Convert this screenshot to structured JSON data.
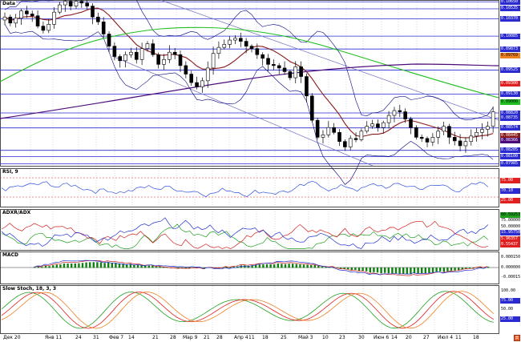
{
  "colors": {
    "background": "#ffffff",
    "grid_dot": "#b0b0c8",
    "hline": "#2a2ad0",
    "candle_up": "#ffffff",
    "candle_down": "#000000",
    "ma_short": "#8b1a1a",
    "ma_mid": "#20c020",
    "ma_long": "#4b0a7a",
    "bollinger": "#000080",
    "channel": "#7070c0",
    "rsi": "#3050e0",
    "adx_green": "#20a020",
    "adx_red": "#d02020",
    "adx_blue": "#2030d0",
    "macd_hist": "#108010",
    "macd_sig": "#d02020",
    "macd_line": "#2030d0",
    "stoch_green": "#20a020",
    "stoch_red": "#e02020",
    "stoch_orange": "#f08020"
  },
  "panes": {
    "price": {
      "label": "Data"
    },
    "rsi": {
      "label": "RSI, 9"
    },
    "adx": {
      "label": "ADXR/ADX"
    },
    "macd": {
      "label": "MACD"
    },
    "stoch": {
      "label": "Slow Stoch, 18, 3, 3"
    }
  },
  "price_tags": [
    {
      "text": "0.10650",
      "bg": "#2a2ad0",
      "fg": "#ffffff"
    },
    {
      "text": "0.10535",
      "bg": "#2a2ad0",
      "fg": "#ffffff"
    },
    {
      "text": "0.10370",
      "bg": "#2a2ad0",
      "fg": "#ffffff"
    },
    {
      "text": "0.10085",
      "bg": "#2a2ad0",
      "fg": "#ffffff"
    },
    {
      "text": "0.09873",
      "bg": "#2a2ad0",
      "fg": "#ffffff"
    },
    {
      "text": "0.09769",
      "bg": "#f08020",
      "fg": "#000000"
    },
    {
      "text": "0.09525",
      "bg": "#2a2ad0",
      "fg": "#ffffff"
    },
    {
      "text": "0.09300",
      "bg": "#e02020",
      "fg": "#ffffff"
    },
    {
      "text": "0.09130",
      "bg": "#2a2ad0",
      "fg": "#ffffff"
    },
    {
      "text": "0.09000",
      "bg": "#20c020",
      "fg": "#000000"
    },
    {
      "text": "0.08820",
      "bg": "#2a2ad0",
      "fg": "#ffffff"
    },
    {
      "text": "0.08735",
      "bg": "#2a2ad0",
      "fg": "#ffffff"
    },
    {
      "text": "0.08574",
      "bg": "#2a2ad0",
      "fg": "#ffffff"
    },
    {
      "text": "0.08445",
      "bg": "#8b1a1a",
      "fg": "#ffffff"
    },
    {
      "text": "0.08366",
      "bg": "#4b0a7a",
      "fg": "#ffffff"
    },
    {
      "text": "0.08205",
      "bg": "#2a2ad0",
      "fg": "#ffffff"
    },
    {
      "text": "0.08100",
      "bg": "#2a2ad0",
      "fg": "#ffffff"
    },
    {
      "text": "0.07985",
      "bg": "#2a2ad0",
      "fg": "#ffffff"
    }
  ],
  "indicator_tags": {
    "rsi": [
      {
        "text": "75.00",
        "bg": "#e02020",
        "fg": "#ffffff"
      },
      {
        "text": "70.10",
        "bg": "#2a2ad0",
        "fg": "#ffffff"
      },
      {
        "text": "25.00",
        "bg": "#e02020",
        "fg": "#ffffff"
      }
    ],
    "adx": [
      {
        "text": "60.59253",
        "bg": "#20a020",
        "fg": "#000000"
      },
      {
        "text": "75.00000",
        "bg": "#ffffff",
        "fg": "#000000"
      },
      {
        "text": "50.00000",
        "bg": "#ffffff",
        "fg": "#000000"
      },
      {
        "text": "15.95750",
        "bg": "#2a2ad0",
        "fg": "#ffffff"
      },
      {
        "text": "5.96357",
        "bg": "#e02020",
        "fg": "#ffffff"
      },
      {
        "text": "0.55437",
        "bg": "#e02020",
        "fg": "#ffffff"
      }
    ],
    "macd": [
      {
        "text": "0.000150",
        "bg": "#ffffff",
        "fg": "#000000"
      },
      {
        "text": "0.000000",
        "bg": "#ffffff",
        "fg": "#000000"
      },
      {
        "text": "-0.000150",
        "bg": "#ffffff",
        "fg": "#000000"
      }
    ],
    "stoch": [
      {
        "text": "100.00",
        "bg": "#ffffff",
        "fg": "#000000"
      },
      {
        "text": "75.00",
        "bg": "#2a2ad0",
        "fg": "#ffffff"
      },
      {
        "text": "50.00",
        "bg": "#ffffff",
        "fg": "#000000"
      },
      {
        "text": "25.00",
        "bg": "#2a2ad0",
        "fg": "#ffffff"
      }
    ]
  },
  "x_labels": [
    "Дек 20",
    "Янв 11",
    "24",
    "31",
    "Фев 7",
    "14",
    "21",
    "28",
    "Мар 9",
    "21",
    "28",
    "Апр 4",
    "11",
    "18",
    "25",
    "Май 3",
    "10",
    "23",
    "30",
    "Июн 6",
    "14",
    "20",
    "27",
    "Июл 4",
    "11",
    "18"
  ],
  "zoom_icon": "zoom-icon",
  "chart_data": {
    "type": "candlestick",
    "price_range": [
      0.0795,
      0.1068
    ],
    "horizontal_levels": [
      0.1065,
      0.10535,
      0.1037,
      0.10085,
      0.09873,
      0.09525,
      0.0913,
      0.0882,
      0.08735,
      0.08574,
      0.08205,
      0.081,
      0.07985
    ],
    "closes": [
      0.104,
      0.103,
      0.1038,
      0.105,
      0.1045,
      0.1042,
      0.1025,
      0.1018,
      0.1028,
      0.1048,
      0.106,
      0.1066,
      0.1058,
      0.1066,
      0.1063,
      0.1058,
      0.104,
      0.1032,
      0.1012,
      0.0992,
      0.0975,
      0.0968,
      0.0978,
      0.0982,
      0.097,
      0.0988,
      0.0996,
      0.0978,
      0.0962,
      0.097,
      0.0982,
      0.0978,
      0.096,
      0.0946,
      0.0932,
      0.0925,
      0.0935,
      0.0956,
      0.098,
      0.099,
      0.0995,
      0.1002,
      0.1005,
      0.1,
      0.0992,
      0.0988,
      0.0978,
      0.0972,
      0.0962,
      0.096,
      0.0956,
      0.095,
      0.094,
      0.0958,
      0.0942,
      0.091,
      0.087,
      0.0842,
      0.0846,
      0.0858,
      0.085,
      0.0835,
      0.0826,
      0.084,
      0.0838,
      0.0852,
      0.086,
      0.0864,
      0.0858,
      0.0866,
      0.0878,
      0.0886,
      0.0884,
      0.0872,
      0.0858,
      0.0842,
      0.084,
      0.0834,
      0.0842,
      0.0852,
      0.086,
      0.0842,
      0.0836,
      0.0828,
      0.0835,
      0.0844,
      0.085,
      0.0855,
      0.086,
      0.0884
    ]
  }
}
